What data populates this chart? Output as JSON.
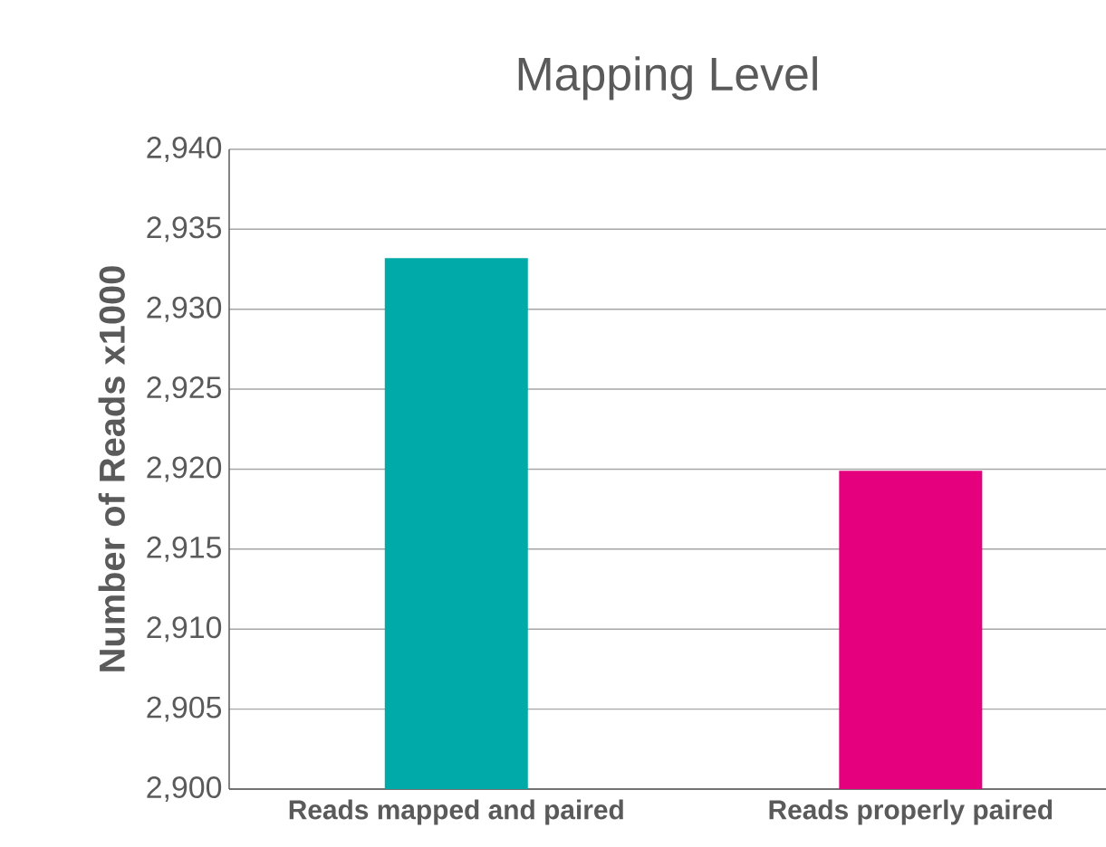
{
  "chart_data": {
    "type": "bar",
    "title": "Mapping Level",
    "ylabel": "Number of Reads x1000",
    "categories": [
      "Reads mapped and paired",
      "Reads properly paired"
    ],
    "values": [
      2933.2,
      2919.9
    ],
    "colors": [
      "#00aaa9",
      "#e5007e"
    ],
    "ylim": [
      2900,
      2940
    ],
    "yticks": [
      {
        "value": 2900,
        "label": "2,900"
      },
      {
        "value": 2905,
        "label": "2,905"
      },
      {
        "value": 2910,
        "label": "2,910"
      },
      {
        "value": 2915,
        "label": "2,915"
      },
      {
        "value": 2920,
        "label": "2,920"
      },
      {
        "value": 2925,
        "label": "2,925"
      },
      {
        "value": 2930,
        "label": "2,930"
      },
      {
        "value": 2935,
        "label": "2,935"
      },
      {
        "value": 2940,
        "label": "2,940"
      }
    ],
    "grid": "y"
  }
}
